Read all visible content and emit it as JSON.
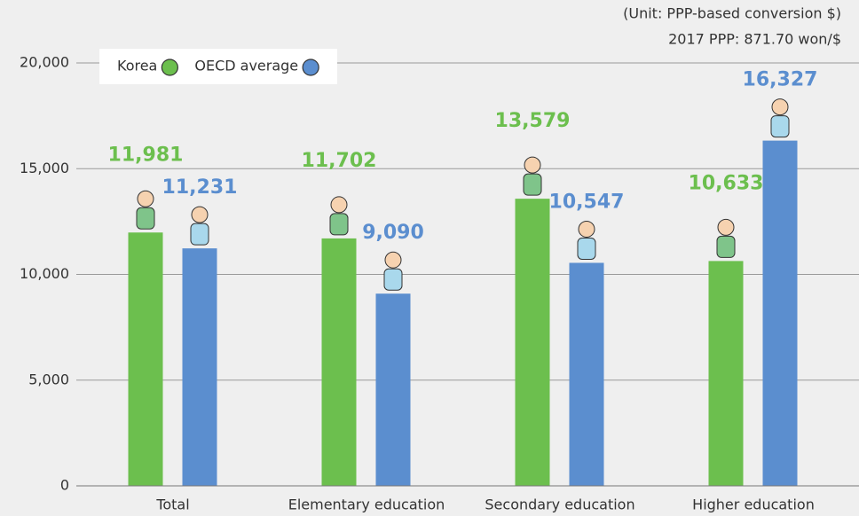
{
  "chart_data": {
    "type": "bar",
    "notes": [
      "(Unit: PPP-based conversion $)",
      "2017 PPP: 871.70 won/$"
    ],
    "categories": [
      "Total",
      "Elementary education",
      "Secondary education",
      "Higher education"
    ],
    "series": [
      {
        "name": "Korea",
        "color": "#6cbf4e",
        "values": [
          11981,
          11702,
          13579,
          10633
        ],
        "value_labels": [
          "11,981",
          "11,702",
          "13,579",
          "10,633"
        ]
      },
      {
        "name": "OECD average",
        "color": "#5b8ecf",
        "values": [
          11231,
          9090,
          10547,
          16327
        ],
        "value_labels": [
          "11,231",
          "9,090",
          "10,547",
          "16,327"
        ]
      }
    ],
    "ylim": [
      0,
      20000
    ],
    "yticks": [
      0,
      {
        "value": 5000,
        "label": "5,000"
      },
      {
        "value": 10000,
        "label": "10,000"
      },
      {
        "value": 15000,
        "label": "15,000"
      },
      {
        "value": 20000,
        "label": "20,000"
      }
    ],
    "grid": true,
    "legend": "top-left"
  }
}
